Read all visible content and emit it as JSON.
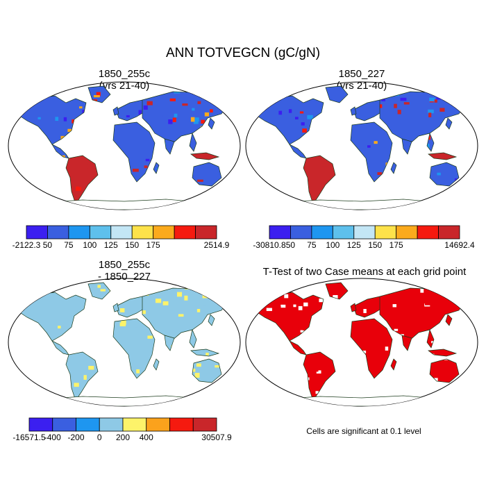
{
  "figure": {
    "title": "ANN TOTVEGCN (gC/gN)",
    "note": "Cells are significant at 0.1 level"
  },
  "chart_data": [
    {
      "type": "heatmap",
      "panel": "top-left",
      "title_lines": [
        "1850_255c",
        "(yrs 21-40)"
      ],
      "map_projection": "robinson",
      "colorbar": {
        "colors": [
          "#3b1ff0",
          "#3a5fe0",
          "#1e96f0",
          "#5ec0ec",
          "#c3e6f5",
          "#fde24a",
          "#fbaa1c",
          "#f51a0f",
          "#c9262a"
        ],
        "tick_labels": [
          "-2122.3",
          "50",
          "75",
          "100",
          "125",
          "150",
          "175",
          "2514.9"
        ],
        "min": -2122.3,
        "max": 2514.9,
        "levels": [
          50,
          75,
          100,
          125,
          150,
          175
        ]
      }
    },
    {
      "type": "heatmap",
      "panel": "top-right",
      "title_lines": [
        "1850_227",
        "(yrs 21-40)"
      ],
      "map_projection": "robinson",
      "colorbar": {
        "colors": [
          "#3b1ff0",
          "#3a5fe0",
          "#1e96f0",
          "#5ec0ec",
          "#c3e6f5",
          "#fde24a",
          "#fbaa1c",
          "#f51a0f",
          "#c9262a"
        ],
        "tick_labels": [
          "-30810.8",
          "50",
          "75",
          "100",
          "125",
          "150",
          "175",
          "14692.4"
        ],
        "min": -30810.8,
        "max": 14692.4,
        "levels": [
          50,
          75,
          100,
          125,
          150,
          175
        ]
      }
    },
    {
      "type": "heatmap",
      "panel": "bottom-left",
      "title_lines": [
        "1850_255c",
        "- 1850_227"
      ],
      "map_projection": "robinson",
      "colorbar": {
        "colors": [
          "#3b1ff0",
          "#3a5fe0",
          "#1e96f0",
          "#8ec9e6",
          "#fdf36a",
          "#fba21c",
          "#f51a0f",
          "#c9262a"
        ],
        "tick_labels": [
          "-16571.5",
          "-400",
          "-200",
          "0",
          "200",
          "400",
          "30507.9"
        ],
        "min": -16571.5,
        "max": 30507.9,
        "levels": [
          -400,
          -200,
          0,
          200,
          400
        ]
      }
    },
    {
      "type": "heatmap",
      "panel": "bottom-right",
      "title_lines": [
        "T-Test of two Case means at each grid point"
      ],
      "map_projection": "robinson",
      "significance_level": 0.1,
      "colors": [
        "#e8000a"
      ]
    }
  ],
  "palette": {
    "land_tl": [
      "#3a5fe0",
      "#1e96f0",
      "#3b1ff0",
      "#f51a0f",
      "#fbaa1c",
      "#c9262a"
    ],
    "land_diff": [
      "#8ec9e6",
      "#fdf36a"
    ],
    "significant": "#e8000a",
    "coast": "#1a3a1a"
  }
}
